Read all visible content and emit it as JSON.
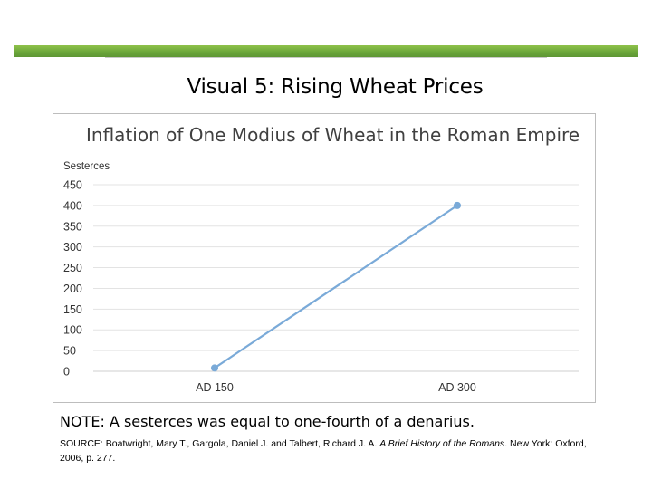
{
  "slide": {
    "title": "Visual 5: Rising Wheat Prices",
    "note": "NOTE: A sesterces was equal to one-fourth of a denarius.",
    "source_prefix": "SOURCE: Boatwright, Mary T., Gargola, Daniel J. and Talbert, Richard J. A. ",
    "source_book": "A Brief History of the Romans",
    "source_suffix": ". New York: Oxford, 2006, p. 277.",
    "accent_color": "#6aa53a"
  },
  "chart_data": {
    "type": "line",
    "title": "Inflation of One Modius of Wheat in the Roman Empire",
    "ylabel": "Sesterces",
    "xlabel": "",
    "categories": [
      "AD 150",
      "AD 300"
    ],
    "series": [
      {
        "values": [
          8,
          400
        ],
        "color": "#7aaad8"
      }
    ],
    "ylim": [
      0,
      450
    ],
    "yticks": [
      "0",
      "50",
      "100",
      "150",
      "200",
      "250",
      "300",
      "350",
      "400",
      "450"
    ],
    "grid": true,
    "legend": "none"
  }
}
